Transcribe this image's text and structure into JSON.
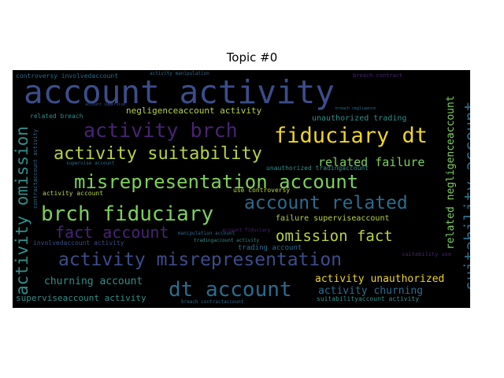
{
  "title": "Topic #0",
  "colors": {
    "background": "#000000",
    "palette": [
      "#3b4d8a",
      "#482374",
      "#f0d625",
      "#b7d442",
      "#2f8f8b",
      "#7dd15c",
      "#2a6c8e",
      "#2d1a63"
    ]
  },
  "words": [
    {
      "text": "account activity"
    },
    {
      "text": "activity brch"
    },
    {
      "text": "fiduciary dt"
    },
    {
      "text": "activity suitability"
    },
    {
      "text": "misrepresentation account"
    },
    {
      "text": "brch fiduciary"
    },
    {
      "text": "account related"
    },
    {
      "text": "fact account"
    },
    {
      "text": "omission fact"
    },
    {
      "text": "activity misrepresentation"
    },
    {
      "text": "dt account"
    },
    {
      "text": "churning account"
    },
    {
      "text": "activity unauthorized"
    },
    {
      "text": "activity churning"
    },
    {
      "text": "superviseaccount activity"
    },
    {
      "text": "suitabilityaccount activity"
    },
    {
      "text": "negligenceaccount activity"
    },
    {
      "text": "unauthorized trading"
    },
    {
      "text": "related failure"
    },
    {
      "text": "failure superviseaccount"
    },
    {
      "text": "trading account"
    },
    {
      "text": "involvedaccount activity"
    },
    {
      "text": "controversy involvedaccount"
    },
    {
      "text": "related breach"
    },
    {
      "text": "use controversy"
    },
    {
      "text": "activity account"
    },
    {
      "text": "unauthorized tradingaccount"
    },
    {
      "text": "activity omission"
    },
    {
      "text": "suitability account"
    },
    {
      "text": "related negligenceaccount"
    },
    {
      "text": "contractaccount activity"
    },
    {
      "text": "activity manipulation"
    },
    {
      "text": "breach contractaccount"
    },
    {
      "text": "manipulation account"
    },
    {
      "text": "tradingaccount activity"
    },
    {
      "text": "supervise account"
    },
    {
      "text": "suitability use"
    },
    {
      "text": "breach negligence"
    },
    {
      "text": "account fiduciary"
    },
    {
      "text": "breach contract"
    },
    {
      "text": "account supervise"
    }
  ]
}
